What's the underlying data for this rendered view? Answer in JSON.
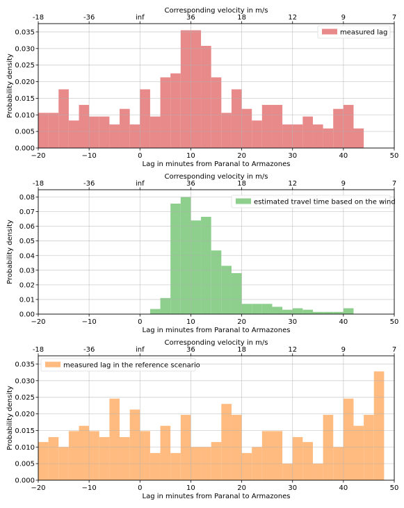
{
  "chart_data": [
    {
      "type": "bar",
      "xlabel": "Lag in minutes from Paranal to Armazones",
      "ylabel": "Probability density",
      "top_xlabel": "Corresponding velocity in m/s",
      "xlim": [
        -20,
        50
      ],
      "ylim": [
        0,
        0.0375
      ],
      "x_ticks": [
        "−20",
        "−10",
        "0",
        "10",
        "20",
        "30",
        "40",
        "50"
      ],
      "y_ticks": [
        "0.000",
        "0.005",
        "0.010",
        "0.015",
        "0.020",
        "0.025",
        "0.030",
        "0.035"
      ],
      "top_ticks": [
        "-18",
        "-36",
        "inf",
        "36",
        "18",
        "12",
        "9",
        "7"
      ],
      "bin_start": -20,
      "bin_width": 2,
      "values": [
        0.0106,
        0.0106,
        0.0177,
        0.0083,
        0.013,
        0.0095,
        0.0095,
        0.0071,
        0.0118,
        0.0071,
        0.0177,
        0.0095,
        0.0213,
        0.0225,
        0.0355,
        0.0355,
        0.0308,
        0.0213,
        0.0106,
        0.0177,
        0.0118,
        0.0083,
        0.013,
        0.013,
        0.0071,
        0.0071,
        0.0095,
        0.0071,
        0.0059,
        0.0118,
        0.013,
        0.0059,
        0.0,
        0.0,
        0.0
      ],
      "series_name": "measured lag",
      "color": "#e8898a",
      "legend_position": "top-right",
      "grid": true
    },
    {
      "type": "bar",
      "xlabel": "Lag in minutes from Paranal to Armazones",
      "ylabel": "Probability density",
      "top_xlabel": "Corresponding velocity in m/s",
      "xlim": [
        -20,
        50
      ],
      "ylim": [
        0,
        0.085
      ],
      "x_ticks": [
        "−20",
        "−10",
        "0",
        "10",
        "20",
        "30",
        "40",
        "50"
      ],
      "y_ticks": [
        "0.00",
        "0.01",
        "0.02",
        "0.03",
        "0.04",
        "0.05",
        "0.06",
        "0.07",
        "0.08"
      ],
      "top_ticks": [
        "-18",
        "-36",
        "inf",
        "36",
        "18",
        "12",
        "9",
        "7"
      ],
      "bin_start": 2,
      "bin_width": 2,
      "values": [
        0.0035,
        0.011,
        0.0755,
        0.08,
        0.064,
        0.0665,
        0.0435,
        0.033,
        0.028,
        0.007,
        0.007,
        0.007,
        0.005,
        0.003,
        0.004,
        0.003,
        0.0015,
        0.0015,
        0.0015,
        0.004
      ],
      "series_name": "estimated travel time based on the wind",
      "color": "#8ecf8e",
      "legend_position": "top-right",
      "grid": true
    },
    {
      "type": "bar",
      "xlabel": "Lag in minutes from Paranal to Armazones",
      "ylabel": "Probability density",
      "top_xlabel": "Corresponding velocity in m/s",
      "xlim": [
        -20,
        50
      ],
      "ylim": [
        0,
        0.0375
      ],
      "x_ticks": [
        "−20",
        "−10",
        "0",
        "10",
        "20",
        "30",
        "40",
        "50"
      ],
      "y_ticks": [
        "0.000",
        "0.005",
        "0.010",
        "0.015",
        "0.020",
        "0.025",
        "0.030",
        "0.035"
      ],
      "top_ticks": [
        "-18",
        "-36",
        "inf",
        "36",
        "18",
        "12",
        "9",
        "7"
      ],
      "bin_start": -20,
      "bin_width": 2,
      "values": [
        0.0115,
        0.013,
        0.01,
        0.0148,
        0.0164,
        0.0148,
        0.013,
        0.0246,
        0.013,
        0.0213,
        0.0148,
        0.0082,
        0.0164,
        0.0082,
        0.0197,
        0.01,
        0.01,
        0.0115,
        0.023,
        0.0197,
        0.0082,
        0.01,
        0.0148,
        0.0148,
        0.005,
        0.013,
        0.0115,
        0.005,
        0.0197,
        0.01,
        0.0246,
        0.0164,
        0.0197,
        0.0328
      ],
      "series_name": "measured lag in the reference scenario",
      "color": "#ffbb80",
      "legend_position": "top-left",
      "grid": true
    }
  ]
}
